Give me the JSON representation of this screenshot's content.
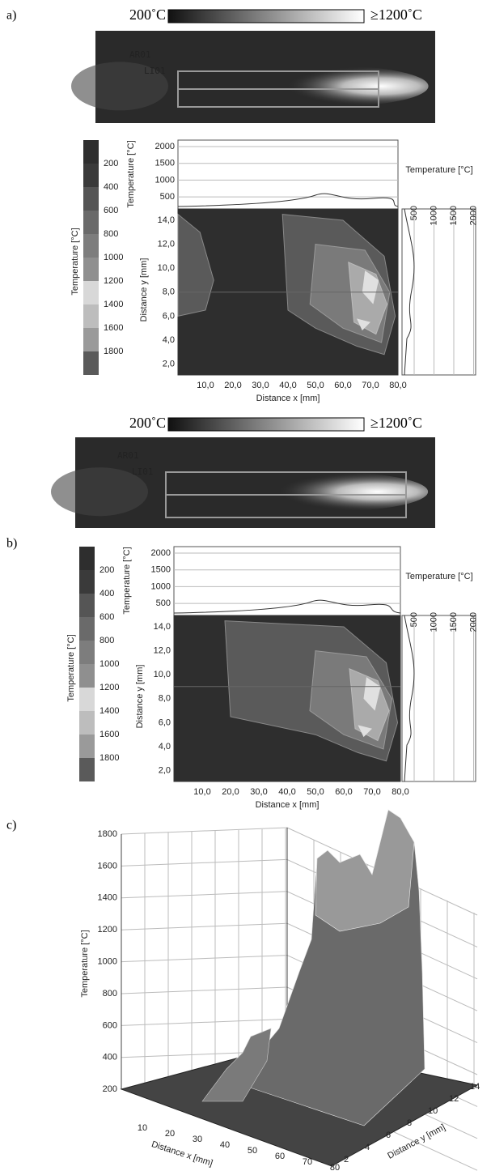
{
  "panels": [
    {
      "label": "a)",
      "scale": {
        "min": "200˚C",
        "max": "≥1200˚C"
      },
      "image": {
        "labels": [
          "AR01",
          "LI01"
        ]
      },
      "colorbar": {
        "title": "Temperature [°C]",
        "ticks": [
          "200",
          "400",
          "600",
          "800",
          "1000",
          "1200",
          "1400",
          "1600",
          "1800"
        ]
      },
      "profile_top": {
        "ylabel": "Temperature [°C]",
        "ticks": [
          "2000",
          "1500",
          "1000",
          "500"
        ]
      },
      "contour": {
        "xlabel": "Distance x [mm]",
        "ylabel": "Distance y [mm]",
        "xticks": [
          "10,0",
          "20,0",
          "30,0",
          "40,0",
          "50,0",
          "60,0",
          "70,0",
          "80,0"
        ],
        "yticks": [
          "14,0",
          "12,0",
          "10,0",
          "8,0",
          "6,0",
          "4,0",
          "2,0"
        ]
      },
      "profile_right": {
        "title": "Temperature [°C]",
        "ticks": [
          "500",
          "1000",
          "1500",
          "2000"
        ]
      }
    },
    {
      "label": "b)",
      "scale": {
        "min": "200˚C",
        "max": "≥1200˚C"
      },
      "image": {
        "labels": [
          "AR01",
          "LI01"
        ]
      },
      "colorbar": {
        "title": "Temperature [°C]",
        "ticks": [
          "200",
          "400",
          "600",
          "800",
          "1000",
          "1200",
          "1400",
          "1600",
          "1800"
        ]
      },
      "profile_top": {
        "ylabel": "Temperature [°C]",
        "ticks": [
          "2000",
          "1500",
          "1000",
          "500"
        ]
      },
      "contour": {
        "xlabel": "Distance x [mm]",
        "ylabel": "Distance y [mm]",
        "xticks": [
          "10,0",
          "20,0",
          "30,0",
          "40,0",
          "50,0",
          "60,0",
          "70,0",
          "80,0"
        ],
        "yticks": [
          "14,0",
          "12,0",
          "10,0",
          "8,0",
          "6,0",
          "4,0",
          "2,0"
        ]
      },
      "profile_right": {
        "title": "Temperature [°C]",
        "ticks": [
          "500",
          "1000",
          "1500",
          "2000"
        ]
      }
    }
  ],
  "surface": {
    "label": "c)",
    "zlabel": "Temperature [°C]",
    "xlabel": "Distance x [mm]",
    "ylabel": "Distance y [mm]",
    "zticks": [
      "1800",
      "1600",
      "1400",
      "1200",
      "1000",
      "800",
      "600",
      "400",
      "200"
    ],
    "xticks": [
      "10",
      "20",
      "30",
      "40",
      "50",
      "60",
      "70",
      "80"
    ],
    "yticks": [
      "2",
      "4",
      "6",
      "8",
      "10",
      "12",
      "14"
    ]
  }
}
